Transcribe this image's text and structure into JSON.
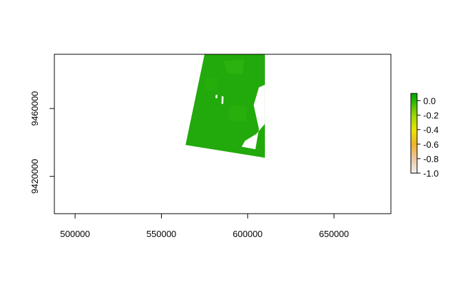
{
  "chart_data": {
    "type": "heatmap",
    "title": "",
    "xlabel": "",
    "ylabel": "",
    "xlim": [
      488000,
      683000
    ],
    "ylim": [
      9398000,
      9492000
    ],
    "x_ticks": [
      500000,
      550000,
      600000,
      650000
    ],
    "y_ticks": [
      9420000,
      9460000
    ],
    "x_tick_labels": [
      "500000",
      "550000",
      "600000",
      "650000"
    ],
    "y_tick_labels": [
      "9420000",
      "9460000"
    ],
    "grid": false,
    "raster": {
      "extent_corners": [
        [
          575000,
          9492000
        ],
        [
          610000,
          9492000
        ],
        [
          610000,
          9431000
        ],
        [
          564000,
          9438500
        ]
      ],
      "dominant_value": 0.0,
      "fill_color": "#22a90b",
      "no_data_patches": [
        [
          [
            606500,
            9472500
          ],
          [
            610000,
            9474000
          ],
          [
            610000,
            9451000
          ],
          [
            605000,
            9445000
          ],
          [
            598500,
            9441000
          ],
          [
            596500,
            9437500
          ],
          [
            604500,
            9436000
          ],
          [
            606500,
            9448000
          ],
          [
            603500,
            9462000
          ]
        ],
        [
          [
            585000,
            9467500
          ],
          [
            586000,
            9467000
          ],
          [
            585800,
            9462500
          ],
          [
            584800,
            9463000
          ]
        ],
        [
          [
            581500,
            9468000
          ],
          [
            582500,
            9468200
          ],
          [
            582300,
            9466000
          ],
          [
            581300,
            9466200
          ]
        ]
      ]
    },
    "legend": {
      "placement": "right",
      "range": [
        -1.0,
        0.1
      ],
      "tick_values": [
        0.0,
        -0.2,
        -0.4,
        -0.6,
        -0.8,
        -1.0
      ],
      "tick_labels": [
        "0.0",
        "-0.2",
        "-0.4",
        "-0.6",
        "-0.8",
        "-1.0"
      ],
      "color_stops": [
        {
          "value": -1.0,
          "color": "#f2f2f2"
        },
        {
          "value": -0.8,
          "color": "#eec6a4"
        },
        {
          "value": -0.6,
          "color": "#eeb32c"
        },
        {
          "value": -0.4,
          "color": "#ebe400"
        },
        {
          "value": -0.2,
          "color": "#9ad900"
        },
        {
          "value": 0.0,
          "color": "#2ab700"
        },
        {
          "value": 0.1,
          "color": "#00a600"
        }
      ]
    }
  }
}
